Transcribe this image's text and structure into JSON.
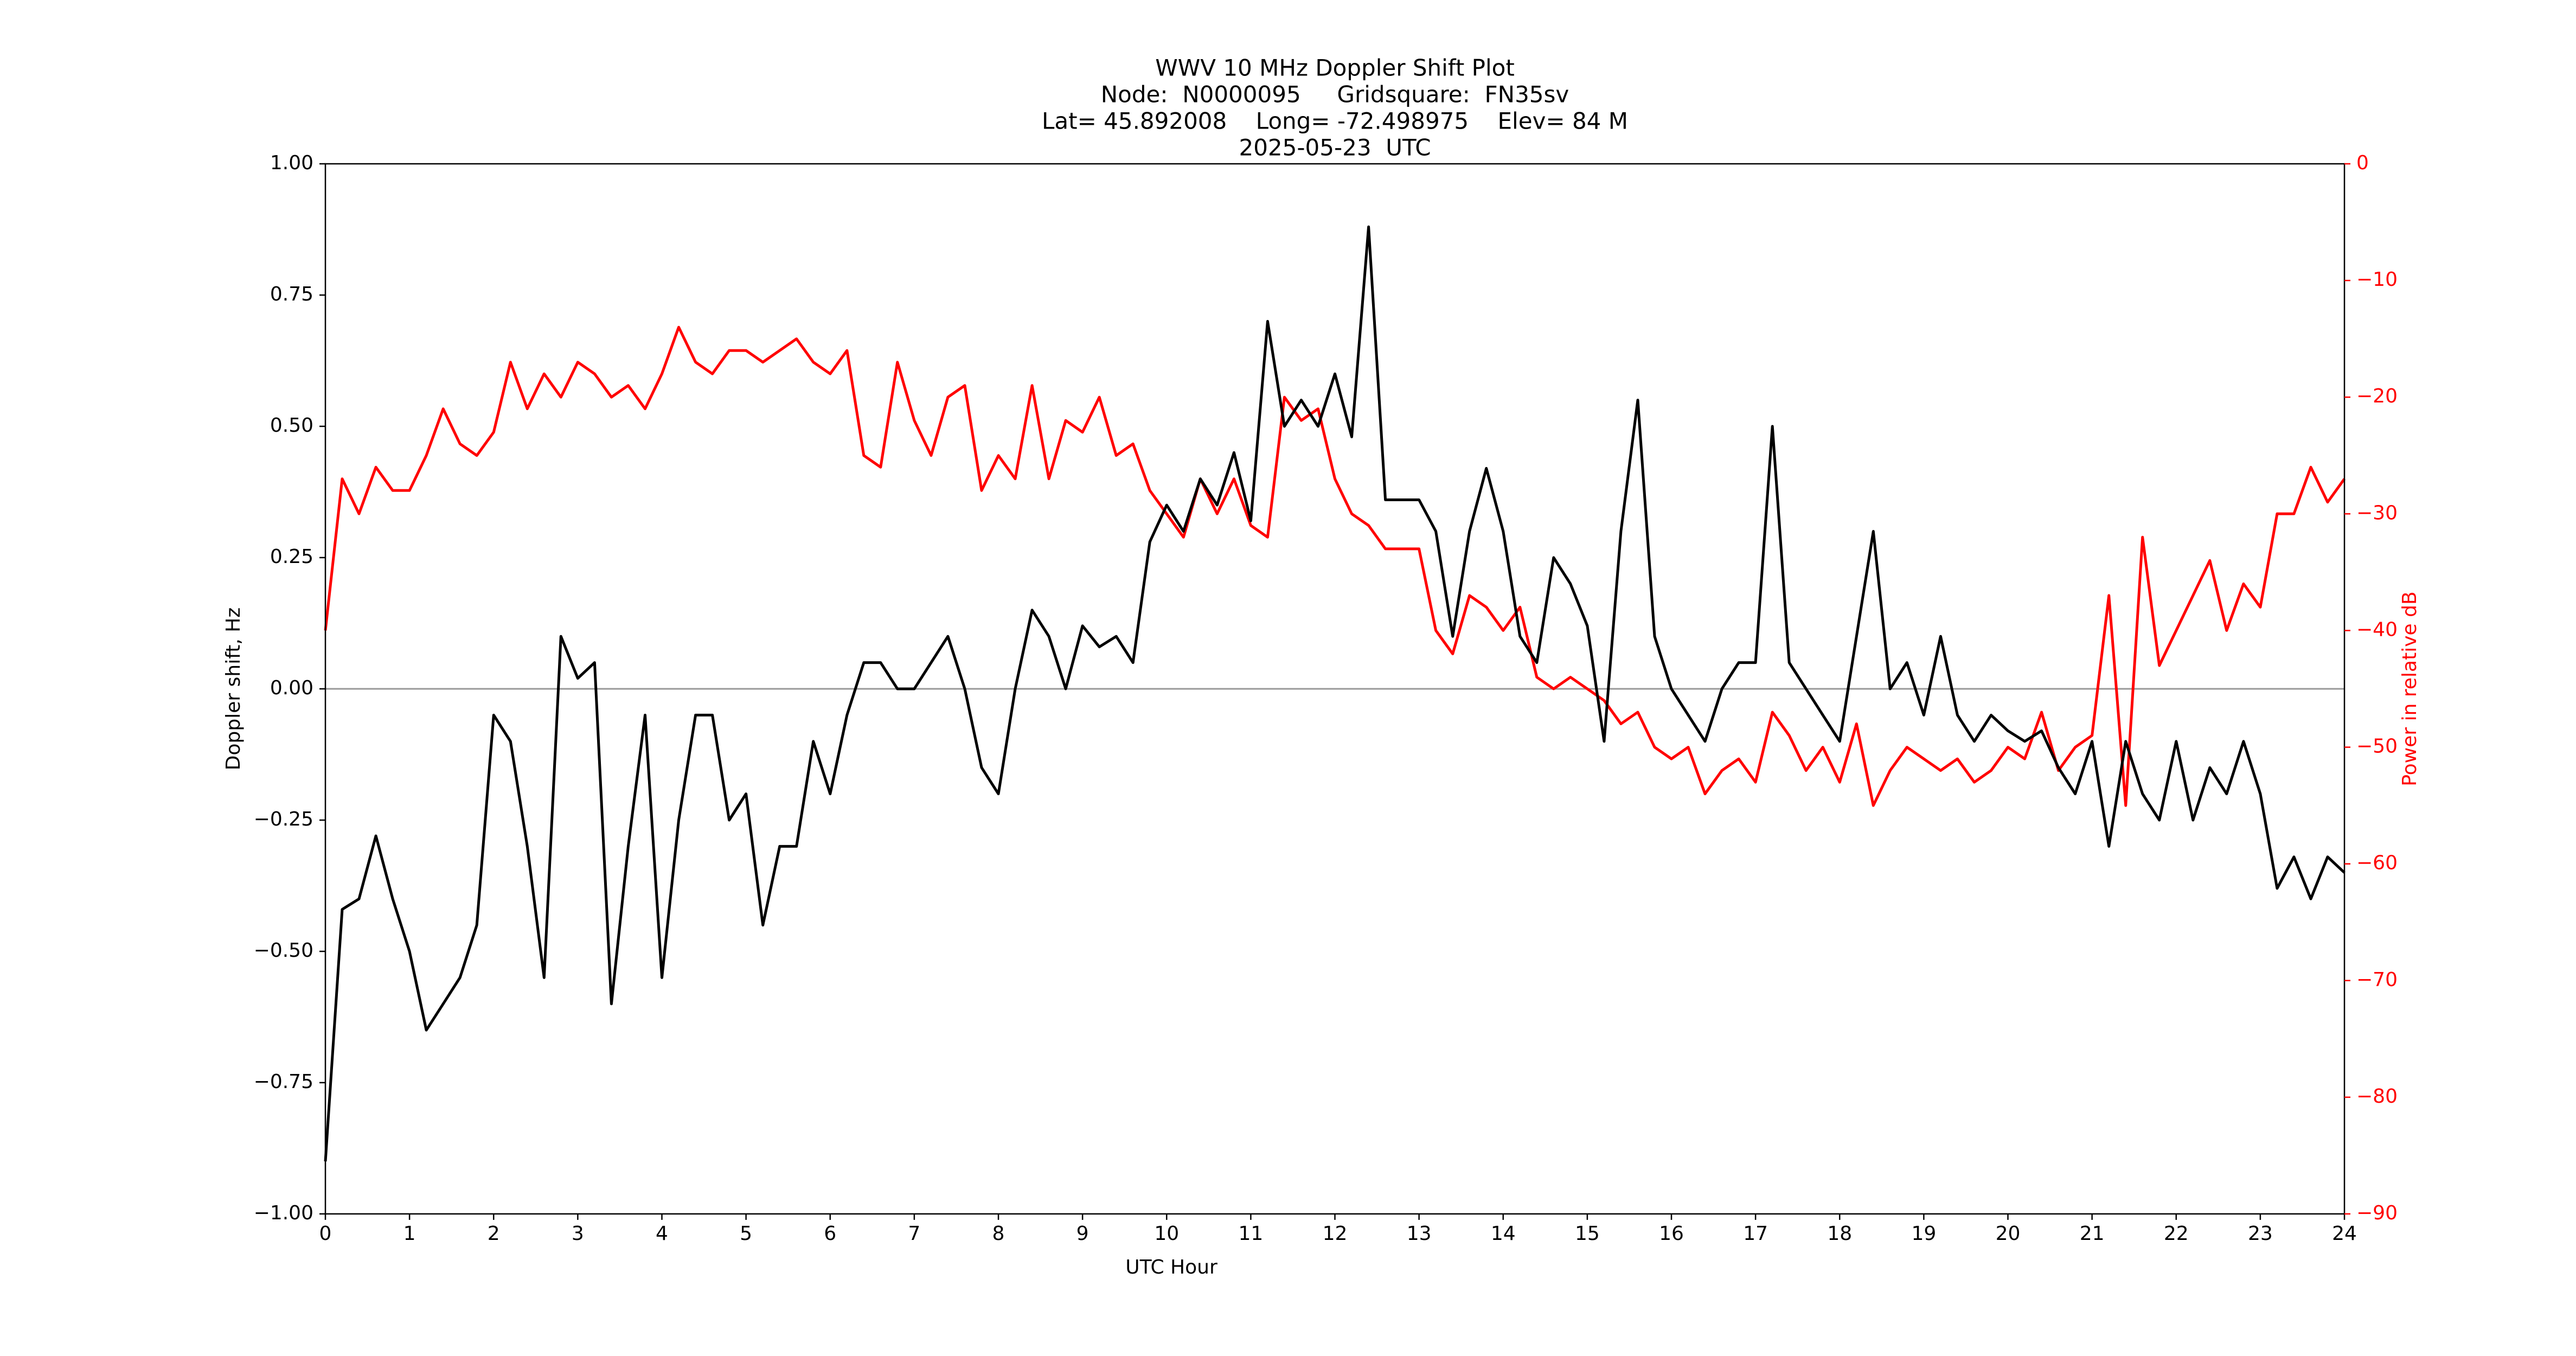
{
  "chart_data": {
    "type": "line",
    "title": [
      "WWV 10 MHz Doppler Shift Plot",
      "Node:  N0000095     Gridsquare:  FN35sv",
      "Lat= 45.892008    Long= -72.498975    Elev= 84 M",
      "2025-05-23  UTC"
    ],
    "xlabel": "UTC Hour",
    "ylabel": "Doppler shift, Hz",
    "y2label": "Power in relative dB",
    "xlim": [
      0,
      24
    ],
    "xticks": [
      0,
      1,
      2,
      3,
      4,
      5,
      6,
      7,
      8,
      9,
      10,
      11,
      12,
      13,
      14,
      15,
      16,
      17,
      18,
      19,
      20,
      21,
      22,
      23,
      24
    ],
    "ylim": [
      -1,
      1
    ],
    "yticks": [
      {
        "value": -1,
        "label": "−1.00"
      },
      {
        "value": -0.75,
        "label": "−0.75"
      },
      {
        "value": -0.5,
        "label": "−0.50"
      },
      {
        "value": -0.25,
        "label": "−0.25"
      },
      {
        "value": 0,
        "label": "0.00"
      },
      {
        "value": 0.25,
        "label": "0.25"
      },
      {
        "value": 0.5,
        "label": "0.50"
      },
      {
        "value": 0.75,
        "label": "0.75"
      },
      {
        "value": 1,
        "label": "1.00"
      }
    ],
    "y2lim": [
      -90,
      0
    ],
    "y2ticks": [
      {
        "value": -90,
        "label": "−90"
      },
      {
        "value": -80,
        "label": "−80"
      },
      {
        "value": -70,
        "label": "−70"
      },
      {
        "value": -60,
        "label": "−60"
      },
      {
        "value": -50,
        "label": "−50"
      },
      {
        "value": -40,
        "label": "−40"
      },
      {
        "value": -30,
        "label": "−30"
      },
      {
        "value": -20,
        "label": "−20"
      },
      {
        "value": -10,
        "label": "−10"
      },
      0
    ],
    "reference_line": 0,
    "reference_color": "#999999",
    "x": [
      0,
      0.2,
      0.4,
      0.6,
      0.8,
      1.0,
      1.2,
      1.4,
      1.6,
      1.8,
      2.0,
      2.2,
      2.4,
      2.6,
      2.8,
      3.0,
      3.2,
      3.4,
      3.6,
      3.8,
      4.0,
      4.2,
      4.4,
      4.6,
      4.8,
      5.0,
      5.2,
      5.4,
      5.6,
      5.8,
      6.0,
      6.2,
      6.4,
      6.6,
      6.8,
      7.0,
      7.2,
      7.4,
      7.6,
      7.8,
      8.0,
      8.2,
      8.4,
      8.6,
      8.8,
      9.0,
      9.2,
      9.4,
      9.6,
      9.8,
      10.0,
      10.2,
      10.4,
      10.6,
      10.8,
      11.0,
      11.2,
      11.4,
      11.6,
      11.8,
      12.0,
      12.2,
      12.4,
      12.6,
      12.8,
      13.0,
      13.2,
      13.4,
      13.6,
      13.8,
      14.0,
      14.2,
      14.4,
      14.6,
      14.8,
      15.0,
      15.2,
      15.4,
      15.6,
      15.8,
      16.0,
      16.2,
      16.4,
      16.6,
      16.8,
      17.0,
      17.2,
      17.4,
      17.6,
      17.8,
      18.0,
      18.2,
      18.4,
      18.6,
      18.8,
      19.0,
      19.2,
      19.4,
      19.6,
      19.8,
      20.0,
      20.2,
      20.4,
      20.6,
      20.8,
      21.0,
      21.2,
      21.4,
      21.6,
      21.8,
      22.0,
      22.2,
      22.4,
      22.6,
      22.8,
      23.0,
      23.2,
      23.4,
      23.6,
      23.8,
      24.0
    ],
    "series": [
      {
        "name": "Doppler shift",
        "color": "#000000",
        "values": [
          -0.9,
          -0.42,
          -0.4,
          -0.28,
          -0.4,
          -0.5,
          -0.65,
          -0.6,
          -0.55,
          -0.45,
          -0.05,
          -0.1,
          -0.3,
          -0.55,
          0.1,
          0.02,
          0.05,
          -0.6,
          -0.3,
          -0.05,
          -0.55,
          -0.25,
          -0.05,
          -0.05,
          -0.25,
          -0.2,
          -0.45,
          -0.3,
          -0.3,
          -0.1,
          -0.2,
          -0.05,
          0.05,
          0.05,
          0.0,
          0.0,
          0.05,
          0.1,
          0.0,
          -0.15,
          -0.2,
          0.0,
          0.15,
          0.1,
          0.0,
          0.12,
          0.08,
          0.1,
          0.05,
          0.28,
          0.35,
          0.3,
          0.4,
          0.35,
          0.45,
          0.32,
          0.7,
          0.5,
          0.55,
          0.5,
          0.6,
          0.48,
          0.88,
          0.36,
          0.36,
          0.36,
          0.3,
          0.1,
          0.3,
          0.42,
          0.3,
          0.1,
          0.05,
          0.25,
          0.2,
          0.12,
          -0.1,
          0.3,
          0.55,
          0.1,
          0.0,
          -0.05,
          -0.1,
          0.0,
          0.05,
          0.05,
          0.5,
          0.05,
          0.0,
          -0.05,
          -0.1,
          0.1,
          0.3,
          0.0,
          0.05,
          -0.05,
          0.1,
          -0.05,
          -0.1,
          -0.05,
          -0.08,
          -0.1,
          -0.08,
          -0.15,
          -0.2,
          -0.1,
          -0.3,
          -0.1,
          -0.2,
          -0.25,
          -0.1,
          -0.25,
          -0.15,
          -0.2,
          -0.1,
          -0.2,
          -0.38,
          -0.32,
          -0.4,
          -0.32,
          -0.35
        ]
      },
      {
        "name": "Power",
        "color": "#ff0000",
        "axis": "y2",
        "values": [
          -40,
          -27,
          -30,
          -26,
          -28,
          -28,
          -25,
          -21,
          -24,
          -25,
          -23,
          -17,
          -21,
          -18,
          -20,
          -17,
          -18,
          -20,
          -19,
          -21,
          -18,
          -14,
          -17,
          -18,
          -16,
          -16,
          -17,
          -16,
          -15,
          -17,
          -18,
          -16,
          -25,
          -26,
          -17,
          -22,
          -25,
          -20,
          -19,
          -28,
          -25,
          -27,
          -19,
          -27,
          -22,
          -23,
          -20,
          -25,
          -24,
          -28,
          -30,
          -32,
          -27,
          -30,
          -27,
          -31,
          -32,
          -20,
          -22,
          -21,
          -27,
          -30,
          -31,
          -33,
          -33,
          -33,
          -40,
          -42,
          -37,
          -38,
          -40,
          -38,
          -44,
          -45,
          -44,
          -45,
          -46,
          -48,
          -47,
          -50,
          -51,
          -50,
          -54,
          -52,
          -51,
          -53,
          -47,
          -49,
          -52,
          -50,
          -53,
          -48,
          -55,
          -52,
          -50,
          -51,
          -52,
          -51,
          -53,
          -52,
          -50,
          -51,
          -47,
          -52,
          -50,
          -49,
          -37,
          -55,
          -32,
          -43,
          -40,
          -37,
          -34,
          -40,
          -36,
          -38,
          -30,
          -30,
          -26,
          -29,
          -27
        ]
      }
    ]
  }
}
